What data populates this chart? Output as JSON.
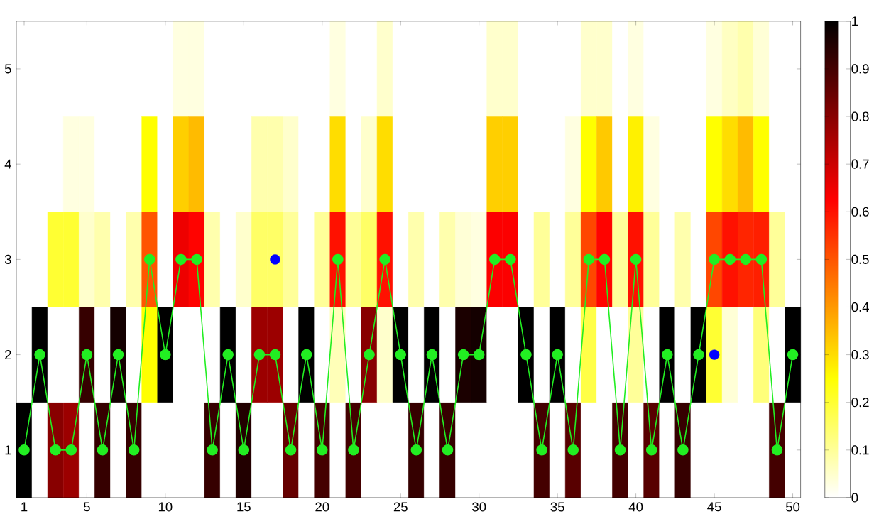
{
  "chart_data": {
    "type": "heatmap",
    "x": [
      1,
      2,
      3,
      4,
      5,
      6,
      7,
      8,
      9,
      10,
      11,
      12,
      13,
      14,
      15,
      16,
      17,
      18,
      19,
      20,
      21,
      22,
      23,
      24,
      25,
      26,
      27,
      28,
      29,
      30,
      31,
      32,
      33,
      34,
      35,
      36,
      37,
      38,
      39,
      40,
      41,
      42,
      43,
      44,
      45,
      46,
      47,
      48,
      49,
      50
    ],
    "xlim": [
      0.5,
      50.5
    ],
    "xticks": [
      1,
      5,
      10,
      15,
      20,
      25,
      30,
      35,
      40,
      45,
      50
    ],
    "ylim": [
      0.5,
      5.5
    ],
    "yticks": [
      1,
      2,
      3,
      4,
      5
    ],
    "cells": [
      [
        0,
        0,
        0,
        0,
        0,
        0,
        0,
        0,
        0,
        0,
        0.03,
        0.03,
        0,
        0,
        0,
        0,
        0,
        0,
        0,
        0,
        0.03,
        0,
        0,
        0.05,
        0,
        0,
        0,
        0,
        0,
        0,
        0.05,
        0.05,
        0,
        0,
        0,
        0,
        0.05,
        0.05,
        0,
        0.03,
        0,
        0,
        0,
        0,
        0.03,
        0.06,
        0.08,
        0.04,
        0,
        0
      ],
      [
        0,
        0,
        0,
        0.03,
        0.03,
        0,
        0,
        0,
        0.25,
        0,
        0.32,
        0.35,
        0,
        0,
        0,
        0.08,
        0.08,
        0.05,
        0,
        0,
        0.3,
        0,
        0.05,
        0.3,
        0,
        0,
        0,
        0,
        0,
        0,
        0.32,
        0.32,
        0,
        0,
        0,
        0.03,
        0.25,
        0.33,
        0,
        0.27,
        0.03,
        0,
        0,
        0,
        0.25,
        0.3,
        0.35,
        0.25,
        0,
        0
      ],
      [
        0,
        0,
        0.2,
        0.2,
        0.05,
        0.08,
        0,
        0.08,
        0.5,
        0,
        0.65,
        0.62,
        0.08,
        0,
        0.05,
        0.15,
        0.15,
        0.1,
        0,
        0.1,
        0.6,
        0.1,
        0.15,
        0.6,
        0,
        0.08,
        0,
        0.08,
        0.04,
        0.03,
        0.63,
        0.63,
        0,
        0.1,
        0,
        0.1,
        0.52,
        0.62,
        0.1,
        0.6,
        0.1,
        0,
        0.08,
        0,
        0.52,
        0.6,
        0.57,
        0.58,
        0.1,
        0
      ],
      [
        0,
        1,
        0,
        0,
        0.92,
        0,
        0.97,
        0,
        0.25,
        1,
        0,
        0,
        0,
        1,
        0,
        0.77,
        0.77,
        0,
        1,
        0,
        0.07,
        0,
        0.8,
        0.05,
        1,
        0,
        1,
        0,
        0.96,
        0.97,
        0,
        0,
        1,
        0,
        1,
        0,
        0.18,
        0,
        0,
        0.1,
        0,
        1,
        0,
        1,
        0.2,
        0.04,
        0,
        0.13,
        0,
        1
      ],
      [
        1,
        0,
        0.8,
        0.77,
        0,
        0.92,
        0,
        0.92,
        0,
        0,
        0,
        0,
        0.92,
        0,
        0.95,
        0,
        0,
        0.85,
        0,
        0.9,
        0,
        0.9,
        0,
        0,
        0,
        0.92,
        0,
        0.92,
        0,
        0,
        0,
        0,
        0,
        0.9,
        0,
        0.87,
        0,
        0,
        0.9,
        0,
        0.87,
        0,
        0.92,
        0,
        0,
        0,
        0,
        0,
        0.9,
        0
      ]
    ],
    "clim": [
      0,
      1
    ],
    "cticks": [
      0,
      0.1,
      0.2,
      0.3,
      0.4,
      0.5,
      0.6,
      0.7,
      0.8,
      0.9,
      1
    ],
    "marker": "circle",
    "series": [
      {
        "type": "line",
        "color": "#22ee22",
        "values": [
          1,
          2,
          1,
          1,
          2,
          1,
          2,
          1,
          3,
          2,
          3,
          3,
          1,
          2,
          1,
          2,
          2,
          1,
          2,
          1,
          3,
          1,
          2,
          3,
          2,
          1,
          2,
          1,
          2,
          2,
          3,
          3,
          2,
          1,
          2,
          1,
          3,
          3,
          1,
          3,
          1,
          2,
          1,
          2,
          3,
          3,
          3,
          3,
          1,
          2
        ]
      },
      {
        "type": "scatter",
        "color": "#0000ff",
        "x": [
          17,
          45
        ],
        "values": [
          3,
          2
        ]
      }
    ]
  }
}
